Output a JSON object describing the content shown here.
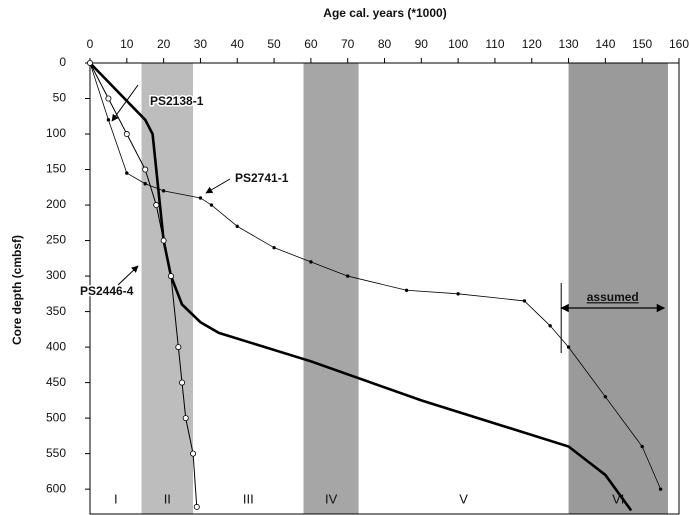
{
  "chart_data": {
    "type": "line",
    "xlabel": "Age cal. years (*1000)",
    "ylabel": "Core depth (cmbsf)",
    "xlim": [
      0,
      160
    ],
    "xticks": [
      0,
      10,
      20,
      30,
      40,
      50,
      60,
      70,
      80,
      90,
      100,
      110,
      120,
      130,
      140,
      150,
      160
    ],
    "ylim": [
      0,
      635
    ],
    "yticks": [
      0,
      50,
      100,
      150,
      200,
      250,
      300,
      350,
      400,
      450,
      500,
      550,
      600
    ],
    "y_inverted": true,
    "stages": [
      {
        "label": "I",
        "from": 0,
        "to": 14,
        "color": "#ffffff"
      },
      {
        "label": "II",
        "from": 14,
        "to": 28,
        "color": "#bdbdbd"
      },
      {
        "label": "III",
        "from": 28,
        "to": 58,
        "color": "#ffffff"
      },
      {
        "label": "IV",
        "from": 58,
        "to": 73,
        "color": "#a6a6a6"
      },
      {
        "label": "V",
        "from": 73,
        "to": 130,
        "color": "#ffffff"
      },
      {
        "label": "VI",
        "from": 130,
        "to": 157,
        "color": "#9a9a9a"
      }
    ],
    "series": [
      {
        "name": "PS2138-1",
        "color": "#000000",
        "marker": "none",
        "x": [
          0,
          15,
          17,
          18,
          19,
          20,
          22,
          25,
          30,
          35,
          60,
          90,
          130,
          135,
          140,
          147
        ],
        "values": [
          0,
          80,
          100,
          150,
          200,
          250,
          300,
          340,
          365,
          380,
          420,
          475,
          540,
          560,
          580,
          630
        ]
      },
      {
        "name": "PS2741-1",
        "color": "#000000",
        "marker": "dot",
        "x": [
          0,
          5,
          10,
          15,
          20,
          30,
          33,
          40,
          50,
          60,
          70,
          86,
          100,
          118,
          125,
          130,
          140,
          150,
          155
        ],
        "values": [
          0,
          80,
          155,
          170,
          180,
          190,
          200,
          230,
          260,
          280,
          300,
          320,
          325,
          335,
          370,
          400,
          470,
          540,
          600
        ]
      },
      {
        "name": "PS2446-4",
        "color": "#000000",
        "marker": "circle",
        "x": [
          0,
          5,
          10,
          15,
          18,
          20,
          22,
          24,
          25,
          26,
          28,
          29
        ],
        "values": [
          0,
          50,
          100,
          150,
          200,
          250,
          300,
          400,
          450,
          500,
          550,
          625
        ]
      }
    ],
    "annotations": [
      {
        "text": "assumed",
        "from": 128,
        "to": 156,
        "depth": 345
      }
    ]
  }
}
